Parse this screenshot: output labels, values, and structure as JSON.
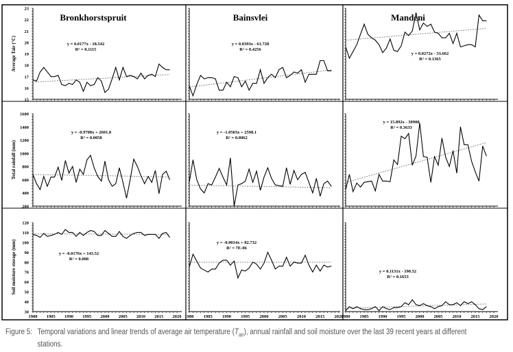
{
  "caption": {
    "label": "Figure 5:",
    "text_before": "Temporal variations and linear trends of average air temperature (",
    "symbol": "T",
    "subscript": "air",
    "text_after": "), annual rainfall and soil moisture over the last 39 recent years at different",
    "text_line2": "stations."
  },
  "chart_data": [
    {
      "type": "line",
      "title": "Bronkhorstspruit",
      "ylabel": "Average Tair (°C)",
      "ylim": [
        15,
        23
      ],
      "yticks": [
        15,
        16,
        17,
        18,
        19,
        20,
        21,
        22,
        23
      ],
      "xlim": [
        1980,
        2020
      ],
      "x_start": 1980,
      "values": [
        16.7,
        16.6,
        17.4,
        17.8,
        17.4,
        17.0,
        17.0,
        17.1,
        16.3,
        16.2,
        16.4,
        16.3,
        16.7,
        16.5,
        15.7,
        16.5,
        16.2,
        16.3,
        16.9,
        16.6,
        15.6,
        15.9,
        16.8,
        17.8,
        16.7,
        17.8,
        17.0,
        17.1,
        17.0,
        16.8,
        17.3,
        16.8,
        17.1,
        17.2,
        17.0,
        18.1,
        17.8,
        17.6,
        17.6
      ],
      "trend": {
        "slope": 0.0177,
        "intercept": -18.542,
        "equation": "y = 0.0177x - 18.542",
        "r2": "R² = 0.1115"
      }
    },
    {
      "type": "line",
      "title": "Bainsvlei",
      "ylim": [
        15,
        23
      ],
      "xlim": [
        1980,
        2020
      ],
      "x_start": 1980,
      "values": [
        16.2,
        15.3,
        16.3,
        17.1,
        16.8,
        16.9,
        16.9,
        16.8,
        15.8,
        15.8,
        16.5,
        16.1,
        17.0,
        16.9,
        16.1,
        16.6,
        15.8,
        16.4,
        16.4,
        17.6,
        16.4,
        16.9,
        17.2,
        16.9,
        17.6,
        17.8,
        16.9,
        17.1,
        17.4,
        17.3,
        17.6,
        16.5,
        17.2,
        17.2,
        17.2,
        18.4,
        18.4,
        17.5,
        17.5
      ],
      "trend": {
        "slope": 0.0393,
        "intercept": -61.728,
        "equation": "y = 0.0393x - 61.728",
        "r2": "R² = 0.4256"
      }
    },
    {
      "type": "line",
      "title": "Mandeni",
      "ylim": [
        15,
        23
      ],
      "xlim": [
        1980,
        2020
      ],
      "x_start": 1980,
      "values": [
        19.6,
        18.6,
        19.2,
        19.8,
        20.7,
        21.6,
        20.7,
        20.4,
        20.2,
        19.8,
        19.1,
        19.5,
        20.3,
        19.3,
        19.2,
        19.7,
        20.9,
        20.6,
        21.0,
        22.6,
        21.1,
        21.7,
        21.4,
        21.6,
        20.9,
        20.8,
        20.4,
        20.4,
        20.8,
        19.9,
        20.8,
        19.6,
        19.7,
        19.8,
        19.8,
        19.6,
        22.4,
        21.9,
        21.9
      ],
      "trend": {
        "slope": 0.0272,
        "intercept": -33.662,
        "equation": "y = 0.0272x - 33.662",
        "r2": "R² = 0.1365"
      }
    },
    {
      "type": "line",
      "ylabel": "Total rainfall (mm)",
      "ylim": [
        200,
        1600
      ],
      "yticks": [
        200,
        400,
        600,
        800,
        1000,
        1200,
        1400,
        1600
      ],
      "xlim": [
        1980,
        2020
      ],
      "x_start": 1980,
      "values": [
        680,
        540,
        450,
        650,
        500,
        640,
        640,
        790,
        590,
        890,
        700,
        800,
        560,
        760,
        680,
        900,
        970,
        780,
        650,
        580,
        880,
        600,
        500,
        540,
        780,
        560,
        320,
        600,
        910,
        800,
        660,
        540,
        650,
        560,
        740,
        390,
        680,
        730,
        600
      ],
      "trend": {
        "slope": -0.9708,
        "intercept": 2601.8,
        "equation": "y = -0.9708x + 2601.8",
        "r2": "R² = 0.0058"
      }
    },
    {
      "type": "line",
      "ylim": [
        200,
        1600
      ],
      "xlim": [
        1980,
        2020
      ],
      "x_start": 1980,
      "values": [
        560,
        900,
        600,
        460,
        400,
        540,
        520,
        640,
        770,
        640,
        520,
        930,
        200,
        520,
        540,
        580,
        760,
        560,
        730,
        440,
        640,
        780,
        620,
        520,
        510,
        500,
        780,
        530,
        740,
        600,
        680,
        710,
        560,
        400,
        620,
        350,
        540,
        580,
        500
      ],
      "trend": {
        "slope": -1.0503,
        "intercept": 2598.1,
        "equation": "y = -1.0503x + 2598.1",
        "r2": "R² = 0.0062"
      }
    },
    {
      "type": "line",
      "ylim": [
        200,
        1600
      ],
      "xlim": [
        1980,
        2020
      ],
      "x_start": 1980,
      "values": [
        450,
        680,
        420,
        550,
        490,
        560,
        570,
        580,
        430,
        680,
        580,
        580,
        570,
        900,
        830,
        1260,
        1220,
        1300,
        820,
        960,
        1460,
        950,
        940,
        560,
        950,
        820,
        1230,
        940,
        800,
        1040,
        700,
        1400,
        1130,
        1130,
        880,
        720,
        580,
        1110,
        960
      ],
      "trend": {
        "slope": 15.892,
        "intercept": -30908,
        "equation": "y = 15.892x - 30908",
        "r2": "R² = 0.3633"
      }
    },
    {
      "type": "line",
      "ylabel": "Soil moisture storage (mm)",
      "ylim": [
        30,
        120
      ],
      "yticks": [
        30,
        40,
        50,
        60,
        70,
        80,
        90,
        100,
        110,
        120
      ],
      "xlim": [
        1980,
        2020
      ],
      "xticks": [
        1980,
        1985,
        1990,
        1995,
        2000,
        2005,
        2010,
        2015,
        2020
      ],
      "x_start": 1980,
      "values": [
        108,
        107,
        105,
        109,
        106,
        107,
        108,
        110,
        108,
        113,
        110,
        110,
        106,
        110,
        107,
        110,
        112,
        111,
        107,
        107,
        112,
        109,
        106,
        106,
        111,
        106,
        104,
        107,
        109,
        110,
        110,
        107,
        108,
        108,
        108,
        104,
        109,
        110,
        105
      ],
      "trend": {
        "slope": -0.0176,
        "intercept": 143.52,
        "equation": "y = -0.0176x + 143.52",
        "r2": "R² = 0.008"
      }
    },
    {
      "type": "line",
      "ylim": [
        30,
        120
      ],
      "xlim": [
        1980,
        2020
      ],
      "xticks": [
        1980,
        1985,
        1990,
        1995,
        2000,
        2005,
        2010,
        2015,
        2020
      ],
      "x_start": 1980,
      "values": [
        75,
        88,
        81,
        74,
        72,
        70,
        73,
        73,
        79,
        82,
        82,
        77,
        81,
        64,
        72,
        71,
        74,
        80,
        78,
        73,
        79,
        90,
        82,
        73,
        76,
        76,
        85,
        76,
        80,
        79,
        79,
        87,
        77,
        70,
        77,
        71,
        77,
        75,
        76
      ],
      "trend": {
        "slope": -0.0014,
        "intercept": 82.732,
        "equation": "y = -0.0014x + 82.732",
        "r2": "R² = 7E-06"
      }
    },
    {
      "type": "line",
      "ylim": [
        30,
        120
      ],
      "xlim": [
        1980,
        2020
      ],
      "xticks": [
        1980,
        1985,
        1990,
        1995,
        2000,
        2005,
        2010,
        2015,
        2020
      ],
      "x_start": 1980,
      "values": [
        31,
        35,
        33,
        35,
        33,
        32,
        32,
        33,
        35,
        31,
        35,
        33,
        32,
        34,
        34,
        35,
        39,
        37,
        42,
        37,
        36,
        38,
        36,
        35,
        33,
        35,
        36,
        40,
        37,
        37,
        39,
        36,
        40,
        38,
        40,
        37,
        33,
        32,
        35
      ],
      "trend": {
        "slope": 0.1131,
        "intercept": -190.52,
        "equation": "y = 0.1131x - 190.52",
        "r2": "R² = 0.1653"
      }
    }
  ]
}
